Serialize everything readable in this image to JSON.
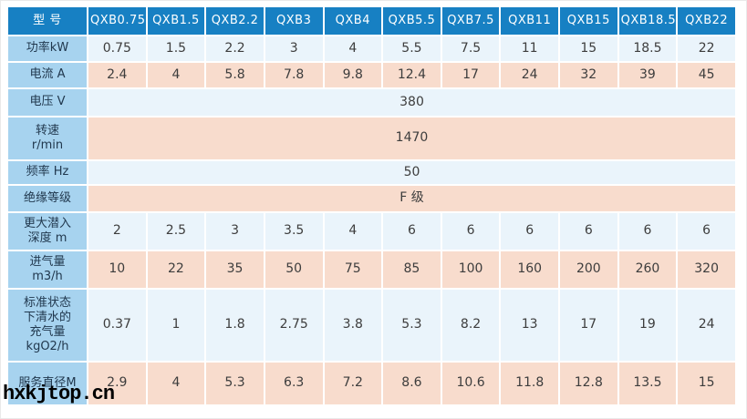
{
  "watermark": "hxkjtop.cn",
  "colors": {
    "header_blue": "#1780c3",
    "label_blue": "#a7d3ef",
    "row_light": "#eaf4fb",
    "row_pink": "#f8dccd",
    "header_text": "#ffffff",
    "label_text": "#21384e",
    "value_text": "#3d3d3d"
  },
  "table": {
    "header": {
      "label": "型 号",
      "models": [
        "QXB0.75",
        "QXB1.5",
        "QXB2.2",
        "QXB3",
        "QXB4",
        "QXB5.5",
        "QXB7.5",
        "QXB11",
        "QXB15",
        "QXB18.5",
        "QXB22"
      ]
    },
    "rows": [
      {
        "id": "power",
        "label": "功率kW",
        "values": [
          "0.75",
          "1.5",
          "2.2",
          "3",
          "4",
          "5.5",
          "7.5",
          "11",
          "15",
          "18.5",
          "22"
        ]
      },
      {
        "id": "current",
        "label": "电流 A",
        "values": [
          "2.4",
          "4",
          "5.8",
          "7.8",
          "9.8",
          "12.4",
          "17",
          "24",
          "32",
          "39",
          "45"
        ]
      },
      {
        "id": "voltage",
        "label": "电压 V",
        "value": "380"
      },
      {
        "id": "speed",
        "label": "转速\nr/min",
        "value": "1470"
      },
      {
        "id": "frequency",
        "label": "频率 Hz",
        "value": "50"
      },
      {
        "id": "insulation",
        "label": "绝缘等级",
        "value": "F 级"
      },
      {
        "id": "depth",
        "label": "更大潜入\n深度 m",
        "values": [
          "2",
          "2.5",
          "3",
          "3.5",
          "4",
          "6",
          "6",
          "6",
          "6",
          "6",
          "6"
        ]
      },
      {
        "id": "air-intake",
        "label": "进气量\nm3/h",
        "values": [
          "10",
          "22",
          "35",
          "50",
          "75",
          "85",
          "100",
          "160",
          "200",
          "260",
          "320"
        ]
      },
      {
        "id": "oxygen",
        "label": "标准状态\n下清水的\n充气量\nkgO2/h",
        "values": [
          "0.37",
          "1",
          "1.8",
          "2.75",
          "3.8",
          "5.3",
          "8.2",
          "13",
          "17",
          "19",
          "24"
        ]
      },
      {
        "id": "service-diameter",
        "label": "服务直径M",
        "values": [
          "2.9",
          "4",
          "5.3",
          "6.3",
          "7.2",
          "8.6",
          "10.6",
          "11.8",
          "12.8",
          "13.5",
          "15"
        ]
      }
    ]
  }
}
